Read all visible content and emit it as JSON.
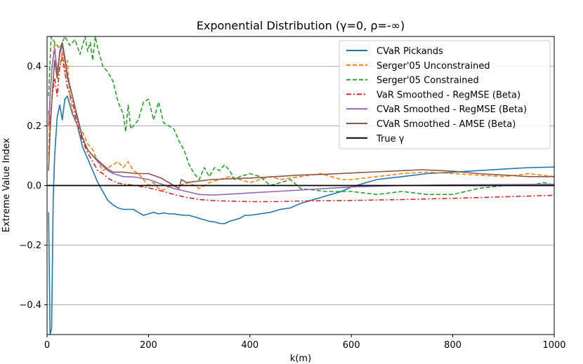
{
  "chart_data": {
    "type": "line",
    "title": "Exponential Distribution (γ=0, ρ=-∞)",
    "xlabel": "k(m)",
    "ylabel": "Extreme Value Index",
    "xlim": [
      0,
      1000
    ],
    "ylim": [
      -0.5,
      0.5
    ],
    "xticks": [
      0,
      200,
      400,
      600,
      800,
      1000
    ],
    "xtick_labels": [
      "0",
      "200",
      "400",
      "600",
      "800",
      "1000"
    ],
    "yticks": [
      -0.4,
      -0.2,
      0.0,
      0.2,
      0.4
    ],
    "ytick_labels": [
      "−0.4",
      "−0.2",
      "0.0",
      "0.2",
      "0.4"
    ],
    "grid": "horizontal",
    "legend_position": "top-right",
    "series": [
      {
        "name": "CVaR Pickands",
        "color": "#1f77b4",
        "dash": "solid",
        "x": [
          3,
          6,
          9,
          12,
          15,
          20,
          25,
          30,
          35,
          40,
          50,
          60,
          70,
          80,
          90,
          100,
          110,
          120,
          130,
          140,
          150,
          160,
          170,
          180,
          190,
          200,
          210,
          220,
          230,
          240,
          250,
          260,
          270,
          280,
          290,
          300,
          310,
          320,
          330,
          340,
          350,
          360,
          370,
          380,
          390,
          400,
          420,
          440,
          460,
          480,
          500,
          520,
          540,
          560,
          580,
          600,
          650,
          700,
          750,
          800,
          850,
          900,
          950,
          1000
        ],
        "y": [
          -0.09,
          -0.5,
          -0.48,
          -0.05,
          0.1,
          0.23,
          0.27,
          0.22,
          0.29,
          0.3,
          0.24,
          0.2,
          0.13,
          0.09,
          0.05,
          0.01,
          -0.02,
          -0.05,
          -0.065,
          -0.075,
          -0.08,
          -0.08,
          -0.08,
          -0.09,
          -0.1,
          -0.095,
          -0.09,
          -0.095,
          -0.092,
          -0.095,
          -0.095,
          -0.098,
          -0.1,
          -0.1,
          -0.105,
          -0.11,
          -0.115,
          -0.12,
          -0.122,
          -0.127,
          -0.128,
          -0.12,
          -0.115,
          -0.11,
          -0.1,
          -0.1,
          -0.095,
          -0.09,
          -0.08,
          -0.075,
          -0.06,
          -0.05,
          -0.04,
          -0.03,
          -0.02,
          -0.005,
          0.02,
          0.03,
          0.04,
          0.045,
          0.05,
          0.055,
          0.06,
          0.062
        ]
      },
      {
        "name": "Serger'05 Unconstrained",
        "color": "#ff7f0e",
        "dash": "dashed",
        "x": [
          3,
          6,
          10,
          15,
          20,
          25,
          30,
          35,
          40,
          45,
          50,
          60,
          70,
          80,
          90,
          100,
          110,
          120,
          130,
          140,
          150,
          160,
          170,
          180,
          190,
          200,
          210,
          220,
          230,
          240,
          260,
          280,
          300,
          320,
          340,
          360,
          380,
          400,
          420,
          440,
          460,
          480,
          500,
          520,
          540,
          560,
          580,
          600,
          650,
          700,
          750,
          800,
          850,
          900,
          950,
          1000
        ],
        "y": [
          0.1,
          0.3,
          0.4,
          0.48,
          0.36,
          0.4,
          0.45,
          0.38,
          0.42,
          0.3,
          0.25,
          0.2,
          0.18,
          0.14,
          0.12,
          0.08,
          0.05,
          0.06,
          0.07,
          0.08,
          0.06,
          0.08,
          0.05,
          0.04,
          0.02,
          0.0,
          0.01,
          -0.01,
          -0.015,
          -0.005,
          0.0,
          0.01,
          -0.01,
          0.01,
          0.02,
          0.03,
          0.02,
          0.01,
          0.02,
          0.03,
          0.02,
          0.025,
          0.03,
          0.035,
          0.04,
          0.03,
          0.02,
          0.02,
          0.03,
          0.04,
          0.045,
          0.04,
          0.035,
          0.03,
          0.04,
          0.03
        ]
      },
      {
        "name": "Serger'05 Constrained",
        "color": "#2ca02c",
        "dash": "dashed",
        "x": [
          3,
          8,
          15,
          25,
          35,
          45,
          55,
          65,
          75,
          80,
          85,
          90,
          95,
          100,
          110,
          120,
          130,
          140,
          150,
          155,
          160,
          165,
          170,
          180,
          190,
          200,
          210,
          220,
          230,
          240,
          250,
          260,
          270,
          280,
          290,
          300,
          310,
          320,
          330,
          340,
          350,
          360,
          370,
          380,
          400,
          420,
          440,
          460,
          480,
          500,
          550,
          600,
          650,
          700,
          750,
          800,
          850,
          900,
          950,
          980,
          1000
        ],
        "y": [
          0.3,
          0.5,
          0.48,
          0.46,
          0.5,
          0.47,
          0.49,
          0.44,
          0.5,
          0.45,
          0.48,
          0.42,
          0.5,
          0.46,
          0.4,
          0.38,
          0.35,
          0.28,
          0.24,
          0.18,
          0.27,
          0.19,
          0.2,
          0.22,
          0.28,
          0.29,
          0.22,
          0.28,
          0.21,
          0.2,
          0.19,
          0.15,
          0.12,
          0.07,
          0.04,
          0.02,
          0.06,
          0.03,
          0.06,
          0.05,
          0.07,
          0.05,
          0.02,
          0.03,
          0.04,
          0.03,
          0.0,
          0.01,
          0.02,
          -0.01,
          -0.02,
          -0.02,
          -0.03,
          -0.02,
          -0.03,
          -0.03,
          -0.01,
          0.0,
          0.0,
          0.01,
          0.0
        ]
      },
      {
        "name": "VaR Smoothed - RegMSE (Beta)",
        "color": "#d62728",
        "dash": "dashdot",
        "x": [
          3,
          6,
          10,
          15,
          20,
          25,
          30,
          35,
          40,
          50,
          60,
          70,
          80,
          90,
          100,
          110,
          120,
          130,
          140,
          150,
          175,
          200,
          225,
          250,
          275,
          300,
          325,
          350,
          400,
          450,
          500,
          600,
          700,
          800,
          900,
          1000
        ],
        "y": [
          0.25,
          0.2,
          0.3,
          0.36,
          0.3,
          0.4,
          0.43,
          0.38,
          0.33,
          0.28,
          0.2,
          0.15,
          0.11,
          0.08,
          0.05,
          0.04,
          0.025,
          0.015,
          0.008,
          0.005,
          0.0,
          -0.008,
          -0.018,
          -0.03,
          -0.04,
          -0.047,
          -0.05,
          -0.052,
          -0.054,
          -0.054,
          -0.052,
          -0.05,
          -0.047,
          -0.043,
          -0.038,
          -0.033
        ]
      },
      {
        "name": "CVaR Smoothed - RegMSE (Beta)",
        "color": "#9467bd",
        "dash": "solid",
        "x": [
          3,
          6,
          10,
          15,
          20,
          25,
          30,
          35,
          40,
          50,
          60,
          70,
          80,
          90,
          100,
          110,
          120,
          130,
          140,
          150,
          175,
          200,
          225,
          250,
          275,
          300,
          325,
          350,
          400,
          450,
          500,
          600,
          700,
          800,
          900,
          1000
        ],
        "y": [
          0.2,
          0.3,
          0.4,
          0.46,
          0.38,
          0.44,
          0.47,
          0.42,
          0.36,
          0.3,
          0.22,
          0.16,
          0.12,
          0.1,
          0.08,
          0.065,
          0.05,
          0.04,
          0.035,
          0.03,
          0.028,
          0.02,
          0.005,
          -0.01,
          -0.02,
          -0.03,
          -0.032,
          -0.03,
          -0.025,
          -0.02,
          -0.015,
          -0.005,
          0.0,
          0.002,
          0.003,
          0.004
        ]
      },
      {
        "name": "CVaR Smoothed - AMSE (Beta)",
        "color": "#8c564b",
        "dash": "solid",
        "x": [
          3,
          6,
          10,
          15,
          20,
          25,
          30,
          35,
          40,
          50,
          60,
          70,
          80,
          90,
          100,
          110,
          120,
          130,
          140,
          150,
          175,
          200,
          225,
          250,
          260,
          265,
          275,
          300,
          325,
          350,
          400,
          450,
          500,
          550,
          600,
          650,
          700,
          740,
          800,
          850,
          900,
          950,
          1000
        ],
        "y": [
          0.05,
          0.18,
          0.3,
          0.42,
          0.36,
          0.45,
          0.48,
          0.43,
          0.37,
          0.3,
          0.23,
          0.16,
          0.12,
          0.1,
          0.085,
          0.07,
          0.055,
          0.045,
          0.045,
          0.045,
          0.04,
          0.04,
          0.025,
          0.0,
          -0.01,
          0.02,
          0.01,
          0.015,
          0.02,
          0.022,
          0.025,
          0.03,
          0.035,
          0.038,
          0.042,
          0.046,
          0.05,
          0.053,
          0.048,
          0.04,
          0.035,
          0.03,
          0.03
        ]
      },
      {
        "name": "True γ",
        "color": "#000000",
        "dash": "solid",
        "x": [
          0,
          1000
        ],
        "y": [
          0.0,
          0.0
        ]
      }
    ]
  }
}
